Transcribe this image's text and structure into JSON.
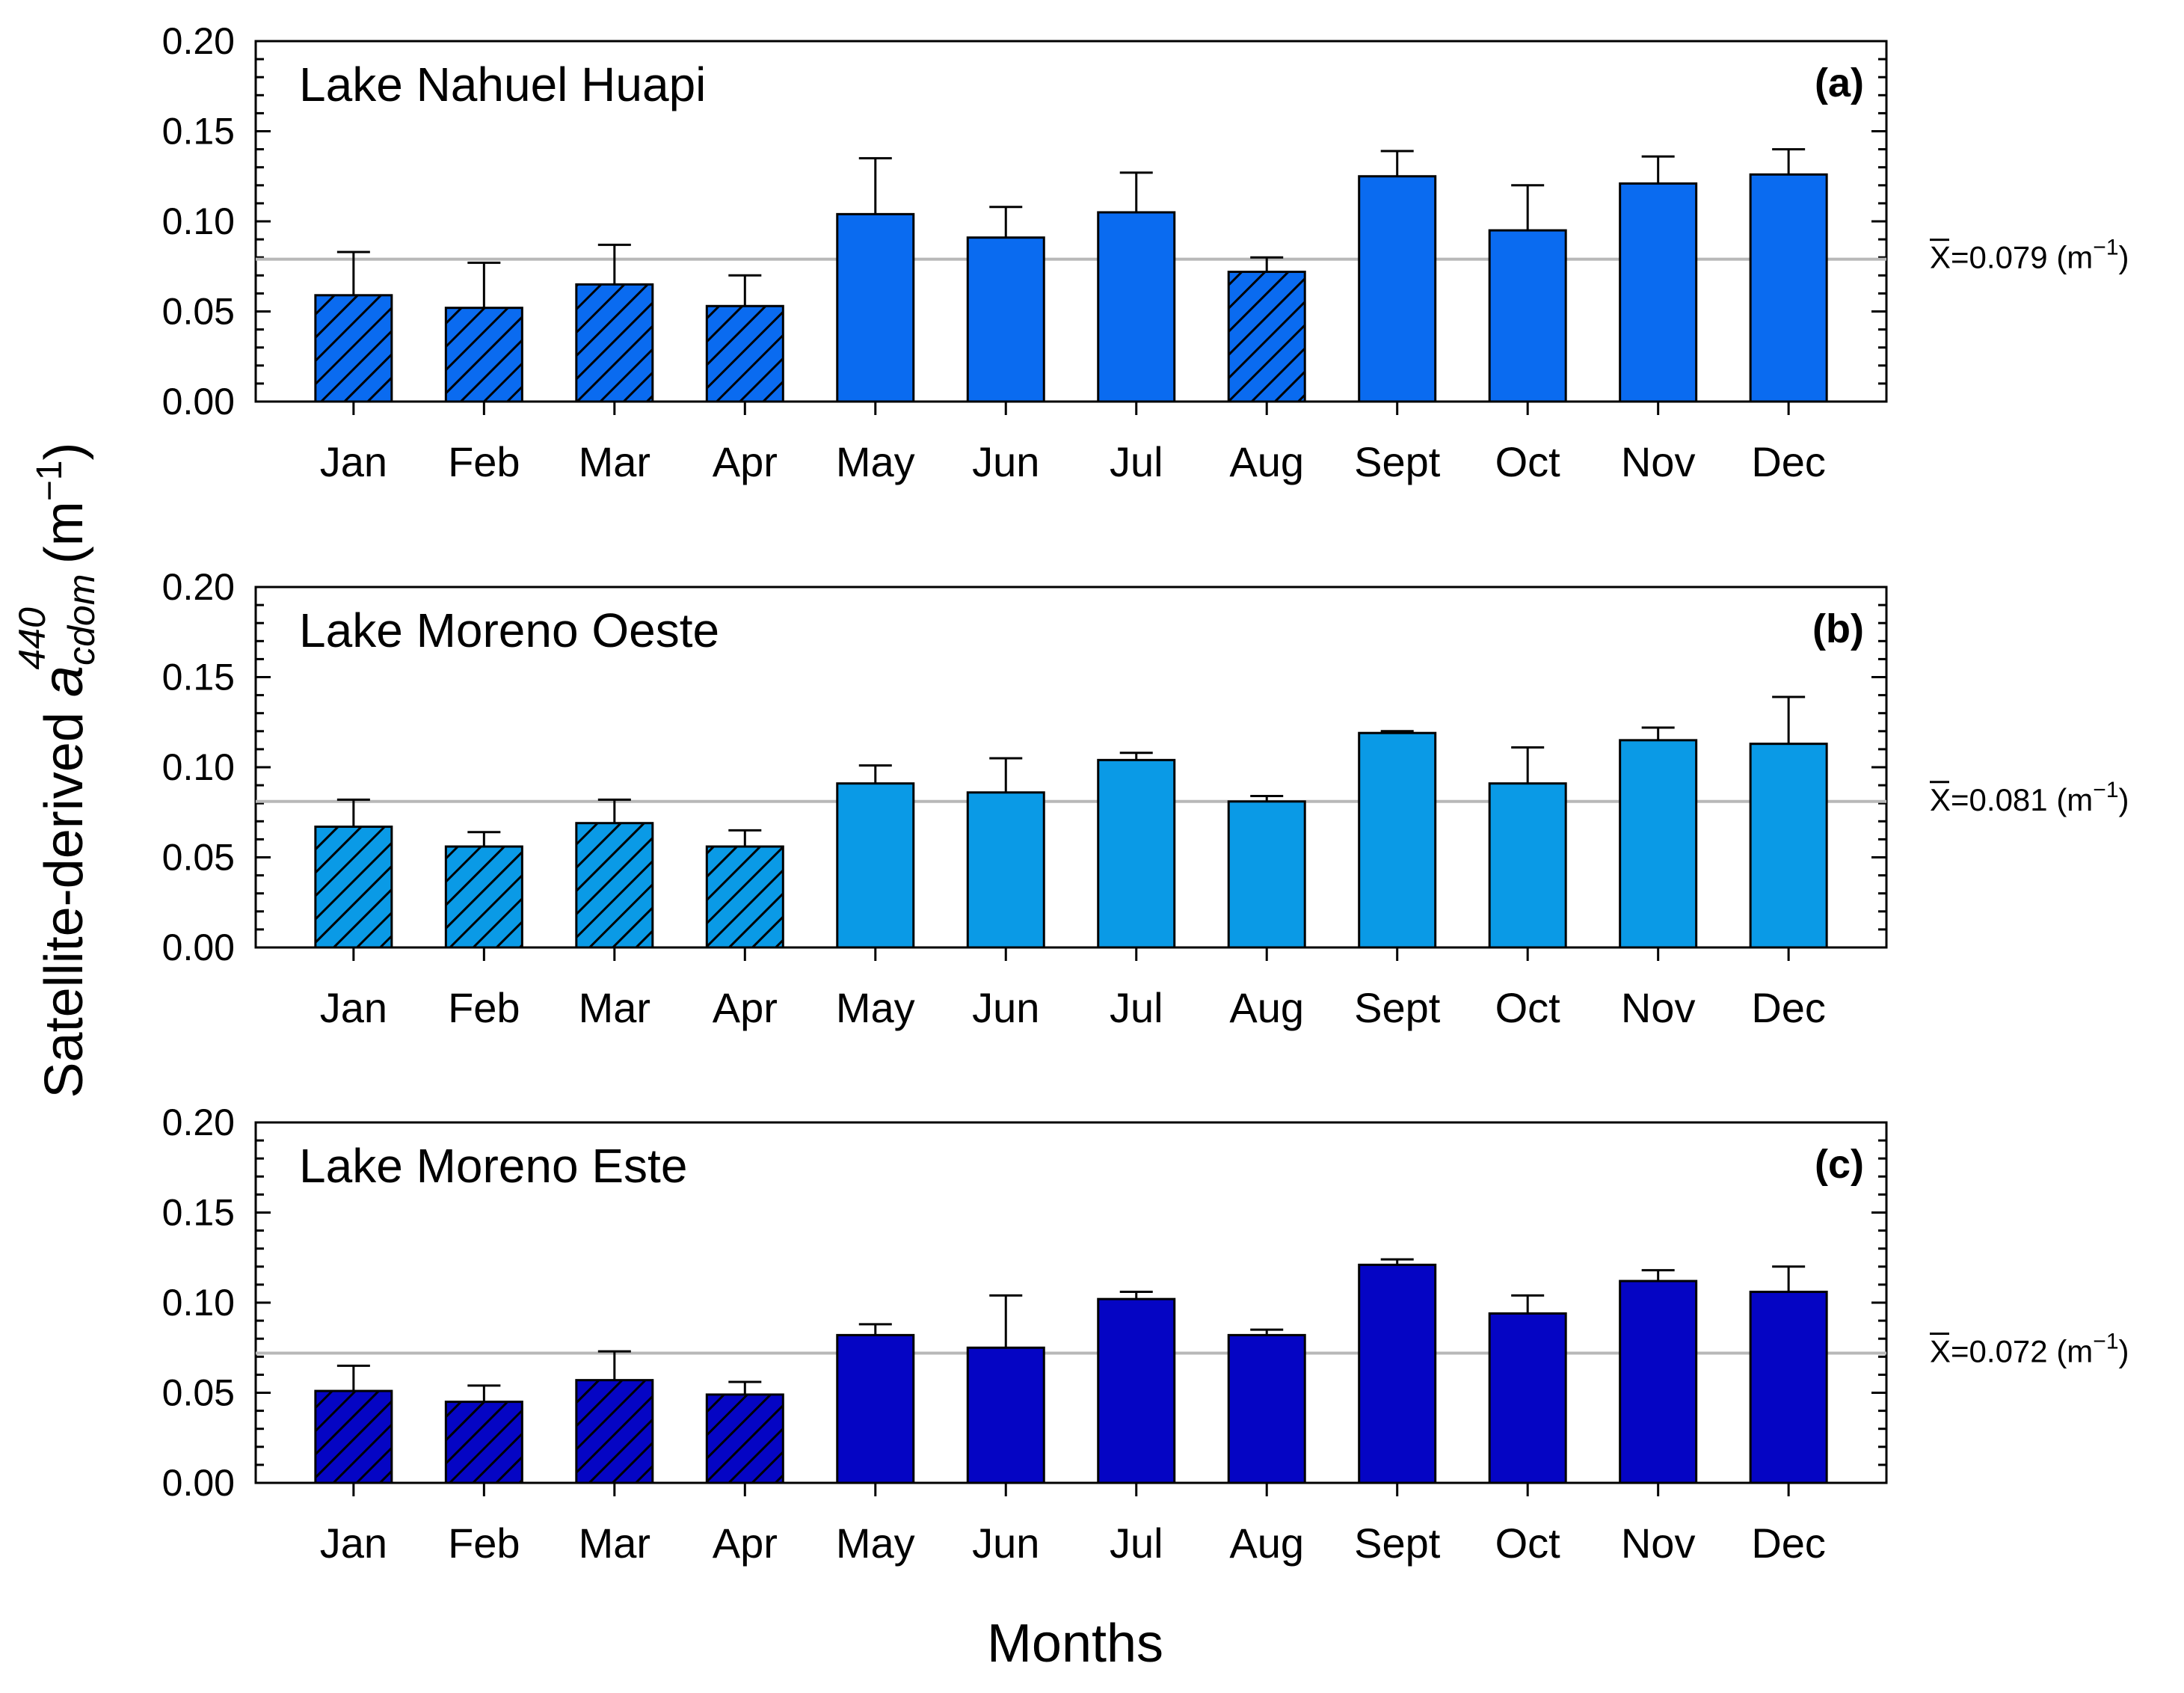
{
  "chart_data": {
    "type": "bar",
    "ylabel_prefix": "Satellite-derived ",
    "ylabel_var": "a",
    "ylabel_sup": "440",
    "ylabel_sub": "cdom",
    "ylabel_unit": " (m",
    "ylabel_unit_exp": "−1",
    "ylabel_unit_close": ")",
    "xlabel": "Months",
    "ylim": [
      0,
      0.2
    ],
    "yticks": [
      "0.00",
      "0.05",
      "0.10",
      "0.15",
      "0.20"
    ],
    "categories": [
      "Jan",
      "Feb",
      "Mar",
      "Apr",
      "May",
      "Jun",
      "Jul",
      "Aug",
      "Sept",
      "Oct",
      "Nov",
      "Dec"
    ],
    "panels": [
      {
        "title": "Lake Nahuel Huapi",
        "letter": "(a)",
        "color": "#0a6bf0",
        "mean_value": 0.079,
        "mean_symbol": "X",
        "mean_text": "=0.079 (m",
        "mean_exp": "−1",
        "mean_close": ")",
        "values": [
          0.059,
          0.052,
          0.065,
          0.053,
          0.104,
          0.091,
          0.105,
          0.072,
          0.125,
          0.095,
          0.121,
          0.126
        ],
        "errors": [
          0.024,
          0.025,
          0.022,
          0.017,
          0.031,
          0.017,
          0.022,
          0.008,
          0.014,
          0.025,
          0.015,
          0.014
        ],
        "hatched": [
          true,
          true,
          true,
          true,
          false,
          false,
          false,
          true,
          false,
          false,
          false,
          false
        ]
      },
      {
        "title": "Lake Moreno Oeste",
        "letter": "(b)",
        "color": "#0a9ae6",
        "mean_value": 0.081,
        "mean_symbol": "X",
        "mean_text": "=0.081 (m",
        "mean_exp": "−1",
        "mean_close": ")",
        "values": [
          0.067,
          0.056,
          0.069,
          0.056,
          0.091,
          0.086,
          0.104,
          0.081,
          0.119,
          0.091,
          0.115,
          0.113
        ],
        "errors": [
          0.015,
          0.008,
          0.013,
          0.009,
          0.01,
          0.019,
          0.004,
          0.003,
          0.001,
          0.02,
          0.007,
          0.026
        ],
        "hatched": [
          true,
          true,
          true,
          true,
          false,
          false,
          false,
          false,
          false,
          false,
          false,
          false
        ]
      },
      {
        "title": "Lake Moreno Este",
        "letter": "(c)",
        "color": "#0505c4",
        "mean_value": 0.072,
        "mean_symbol": "X",
        "mean_text": "=0.072 (m",
        "mean_exp": "−1",
        "mean_close": ")",
        "values": [
          0.051,
          0.045,
          0.057,
          0.049,
          0.082,
          0.075,
          0.102,
          0.082,
          0.121,
          0.094,
          0.112,
          0.106
        ],
        "errors": [
          0.014,
          0.009,
          0.016,
          0.007,
          0.006,
          0.029,
          0.004,
          0.003,
          0.003,
          0.01,
          0.006,
          0.014
        ],
        "hatched": [
          true,
          true,
          true,
          true,
          false,
          false,
          false,
          false,
          false,
          false,
          false,
          false
        ]
      }
    ]
  }
}
